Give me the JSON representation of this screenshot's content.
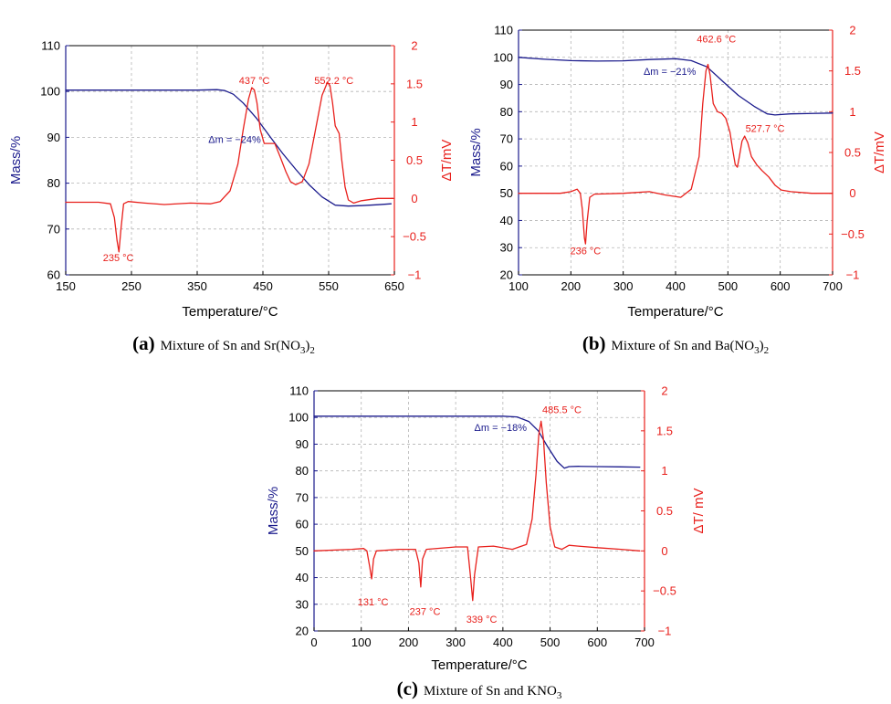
{
  "colors": {
    "mass": "#1a1a8c",
    "dta": "#e8201c",
    "grid": "#b4b4b4",
    "text": "#000000"
  },
  "chart_data": [
    {
      "type": "line",
      "panel_letter": "(a)",
      "caption_parts": [
        "Mixture of Sn and Sr(NO",
        "3",
        ")",
        "2"
      ],
      "xlabel": "Temperature/°C",
      "ylabel_left": "Mass/%",
      "ylabel_right": "ΔT/mV",
      "xlim": [
        150,
        650
      ],
      "ylim_left": [
        60,
        110
      ],
      "ylim_right": [
        -1,
        2
      ],
      "xticks": [
        150,
        250,
        350,
        450,
        550,
        650
      ],
      "xtick_labels": [
        "150",
        "250",
        "350",
        "450",
        "550",
        "650"
      ],
      "yticks_left": [
        60,
        70,
        80,
        90,
        100,
        110
      ],
      "ytick_labels_left": [
        "60",
        "70",
        "80",
        "90",
        "100",
        "110"
      ],
      "yticks_right": [
        -1,
        -0.5,
        0,
        0.5,
        1,
        1.5,
        2
      ],
      "ytick_labels_right": [
        "−1",
        "−0.5",
        "0",
        "0.5",
        "1",
        "1.5",
        "2"
      ],
      "grid": true,
      "series": [
        {
          "axis": "left",
          "points": [
            [
              150,
              100.3
            ],
            [
              200,
              100.3
            ],
            [
              250,
              100.3
            ],
            [
              300,
              100.3
            ],
            [
              350,
              100.3
            ],
            [
              380,
              100.4
            ],
            [
              392,
              100.2
            ],
            [
              405,
              99.4
            ],
            [
              420,
              97.5
            ],
            [
              440,
              94.2
            ],
            [
              460,
              90.3
            ],
            [
              480,
              86.5
            ],
            [
              500,
              83.0
            ],
            [
              520,
              79.7
            ],
            [
              540,
              77.0
            ],
            [
              560,
              75.2
            ],
            [
              580,
              75.0
            ],
            [
              600,
              75.1
            ],
            [
              625,
              75.3
            ],
            [
              645,
              75.5
            ]
          ]
        },
        {
          "axis": "right",
          "points": [
            [
              150,
              -0.05
            ],
            [
              200,
              -0.05
            ],
            [
              218,
              -0.07
            ],
            [
              224,
              -0.25
            ],
            [
              228,
              -0.55
            ],
            [
              231,
              -0.7
            ],
            [
              234,
              -0.4
            ],
            [
              238,
              -0.07
            ],
            [
              245,
              -0.04
            ],
            [
              270,
              -0.06
            ],
            [
              300,
              -0.08
            ],
            [
              340,
              -0.06
            ],
            [
              370,
              -0.07
            ],
            [
              385,
              -0.04
            ],
            [
              400,
              0.1
            ],
            [
              412,
              0.45
            ],
            [
              420,
              0.9
            ],
            [
              428,
              1.3
            ],
            [
              433,
              1.45
            ],
            [
              437,
              1.42
            ],
            [
              441,
              1.25
            ],
            [
              446,
              0.9
            ],
            [
              452,
              0.72
            ],
            [
              460,
              0.72
            ],
            [
              468,
              0.72
            ],
            [
              476,
              0.55
            ],
            [
              485,
              0.35
            ],
            [
              492,
              0.22
            ],
            [
              500,
              0.18
            ],
            [
              510,
              0.22
            ],
            [
              520,
              0.45
            ],
            [
              530,
              0.9
            ],
            [
              540,
              1.35
            ],
            [
              548,
              1.52
            ],
            [
              552,
              1.48
            ],
            [
              556,
              1.25
            ],
            [
              560,
              0.95
            ],
            [
              566,
              0.85
            ],
            [
              570,
              0.5
            ],
            [
              575,
              0.15
            ],
            [
              580,
              -0.02
            ],
            [
              588,
              -0.06
            ],
            [
              600,
              -0.03
            ],
            [
              625,
              0.0
            ],
            [
              648,
              0.0
            ]
          ]
        }
      ],
      "annotations": [
        {
          "text": "437 °C",
          "x": 437,
          "y": 1.5,
          "axis": "right"
        },
        {
          "text": "552.2 °C",
          "x": 558,
          "y": 1.5,
          "axis": "right"
        },
        {
          "text": "235 °C",
          "x": 230,
          "y": -0.82,
          "axis": "right"
        },
        {
          "text": "Δm = −24%",
          "x": 407,
          "y": 88.8,
          "axis": "left",
          "color": "mass"
        }
      ]
    },
    {
      "type": "line",
      "panel_letter": "(b)",
      "caption_parts": [
        "Mixture of Sn and Ba(NO",
        "3",
        ")",
        "2"
      ],
      "xlabel": "Temperature/°C",
      "ylabel_left": "Mass/%",
      "ylabel_right": "ΔT/mV",
      "xlim": [
        100,
        700
      ],
      "ylim_left": [
        20,
        110
      ],
      "ylim_right": [
        -1,
        2
      ],
      "xticks": [
        100,
        200,
        300,
        400,
        500,
        600,
        700
      ],
      "xtick_labels": [
        "100",
        "200",
        "300",
        "400",
        "500",
        "600",
        "700"
      ],
      "yticks_left": [
        20,
        30,
        40,
        50,
        60,
        70,
        80,
        90,
        100,
        110
      ],
      "ytick_labels_left": [
        "20",
        "30",
        "40",
        "50",
        "60",
        "70",
        "80",
        "90",
        "100",
        "110"
      ],
      "yticks_right": [
        -1,
        -0.5,
        0,
        0.5,
        1,
        1.5,
        2
      ],
      "ytick_labels_right": [
        "−1",
        "−0.5",
        "0",
        "0.5",
        "1",
        "1.5",
        "2"
      ],
      "grid": true,
      "series": [
        {
          "axis": "left",
          "points": [
            [
              100,
              100.0
            ],
            [
              150,
              99.3
            ],
            [
              200,
              98.8
            ],
            [
              250,
              98.6
            ],
            [
              300,
              98.7
            ],
            [
              350,
              99.2
            ],
            [
              400,
              99.5
            ],
            [
              430,
              98.8
            ],
            [
              460,
              96.5
            ],
            [
              490,
              91.2
            ],
            [
              520,
              86.0
            ],
            [
              550,
              82.0
            ],
            [
              575,
              79.2
            ],
            [
              590,
              78.8
            ],
            [
              620,
              79.2
            ],
            [
              700,
              79.5
            ]
          ]
        },
        {
          "axis": "right",
          "points": [
            [
              100,
              0.0
            ],
            [
              180,
              0.0
            ],
            [
              200,
              0.02
            ],
            [
              212,
              0.05
            ],
            [
              218,
              0.0
            ],
            [
              222,
              -0.2
            ],
            [
              226,
              -0.55
            ],
            [
              228,
              -0.62
            ],
            [
              231,
              -0.35
            ],
            [
              236,
              -0.05
            ],
            [
              245,
              -0.01
            ],
            [
              300,
              0.0
            ],
            [
              350,
              0.02
            ],
            [
              380,
              -0.02
            ],
            [
              410,
              -0.05
            ],
            [
              430,
              0.05
            ],
            [
              445,
              0.45
            ],
            [
              452,
              1.1
            ],
            [
              458,
              1.5
            ],
            [
              462,
              1.58
            ],
            [
              466,
              1.45
            ],
            [
              472,
              1.1
            ],
            [
              480,
              1.0
            ],
            [
              488,
              0.98
            ],
            [
              496,
              0.92
            ],
            [
              504,
              0.75
            ],
            [
              510,
              0.5
            ],
            [
              514,
              0.35
            ],
            [
              518,
              0.32
            ],
            [
              522,
              0.45
            ],
            [
              527,
              0.64
            ],
            [
              532,
              0.7
            ],
            [
              538,
              0.62
            ],
            [
              545,
              0.45
            ],
            [
              555,
              0.35
            ],
            [
              565,
              0.28
            ],
            [
              578,
              0.2
            ],
            [
              590,
              0.1
            ],
            [
              602,
              0.04
            ],
            [
              620,
              0.02
            ],
            [
              660,
              0.0
            ],
            [
              700,
              0.0
            ]
          ]
        }
      ],
      "annotations": [
        {
          "text": "462.6 °C",
          "x": 478,
          "y": 1.85,
          "axis": "right"
        },
        {
          "text": "527.7 °C",
          "x": 571,
          "y": 0.75,
          "axis": "right"
        },
        {
          "text": "236 °C",
          "x": 228,
          "y": -0.75,
          "axis": "right"
        },
        {
          "text": "Δm = −21%",
          "x": 389,
          "y": 93.5,
          "axis": "left",
          "color": "mass"
        }
      ]
    },
    {
      "type": "line",
      "panel_letter": "(c)",
      "caption_parts": [
        "Mixture of Sn and KNO",
        "3"
      ],
      "xlabel": "Temperature/°C",
      "ylabel_left": "Mass/%",
      "ylabel_right": "ΔT/ mV",
      "xlim": [
        0,
        700
      ],
      "ylim_left": [
        20,
        110
      ],
      "ylim_right": [
        -1,
        2
      ],
      "xticks": [
        0,
        100,
        200,
        300,
        400,
        500,
        600,
        700
      ],
      "xtick_labels": [
        "0",
        "100",
        "200",
        "300",
        "400",
        "500",
        "600",
        "700"
      ],
      "yticks_left": [
        20,
        30,
        40,
        50,
        60,
        70,
        80,
        90,
        100,
        110
      ],
      "ytick_labels_left": [
        "20",
        "30",
        "40",
        "50",
        "60",
        "70",
        "80",
        "90",
        "100",
        "110"
      ],
      "yticks_right": [
        -1,
        -0.5,
        0,
        0.5,
        1,
        1.5,
        2
      ],
      "ytick_labels_right": [
        "−1",
        "−0.5",
        "0",
        "0.5",
        "1",
        "1.5",
        "2"
      ],
      "grid": true,
      "series": [
        {
          "axis": "left",
          "points": [
            [
              0,
              100.5
            ],
            [
              100,
              100.5
            ],
            [
              200,
              100.5
            ],
            [
              300,
              100.5
            ],
            [
              400,
              100.5
            ],
            [
              430,
              100.2
            ],
            [
              455,
              98.5
            ],
            [
              475,
              95.0
            ],
            [
              495,
              89.0
            ],
            [
              515,
              83.5
            ],
            [
              530,
              81.0
            ],
            [
              540,
              81.6
            ],
            [
              560,
              81.7
            ],
            [
              600,
              81.6
            ],
            [
              650,
              81.5
            ],
            [
              690,
              81.4
            ]
          ]
        },
        {
          "axis": "right",
          "points": [
            [
              0,
              0.0
            ],
            [
              80,
              0.02
            ],
            [
              105,
              0.03
            ],
            [
              112,
              0.0
            ],
            [
              118,
              -0.2
            ],
            [
              122,
              -0.35
            ],
            [
              126,
              -0.1
            ],
            [
              132,
              0.0
            ],
            [
              180,
              0.02
            ],
            [
              215,
              0.02
            ],
            [
              222,
              -0.15
            ],
            [
              226,
              -0.45
            ],
            [
              230,
              -0.1
            ],
            [
              238,
              0.02
            ],
            [
              300,
              0.05
            ],
            [
              325,
              0.05
            ],
            [
              331,
              -0.3
            ],
            [
              336,
              -0.62
            ],
            [
              340,
              -0.3
            ],
            [
              348,
              0.05
            ],
            [
              380,
              0.06
            ],
            [
              420,
              0.02
            ],
            [
              450,
              0.08
            ],
            [
              462,
              0.4
            ],
            [
              470,
              0.95
            ],
            [
              476,
              1.45
            ],
            [
              481,
              1.62
            ],
            [
              486,
              1.4
            ],
            [
              492,
              0.85
            ],
            [
              500,
              0.3
            ],
            [
              510,
              0.05
            ],
            [
              525,
              0.02
            ],
            [
              540,
              0.07
            ],
            [
              560,
              0.06
            ],
            [
              600,
              0.04
            ],
            [
              650,
              0.02
            ],
            [
              690,
              0.0
            ]
          ]
        }
      ],
      "annotations": [
        {
          "text": "485.5 °C",
          "x": 525,
          "y": 1.72,
          "axis": "right"
        },
        {
          "text": "131 °C",
          "x": 125,
          "y": -0.68,
          "axis": "right"
        },
        {
          "text": "237 °C",
          "x": 235,
          "y": -0.8,
          "axis": "right"
        },
        {
          "text": "339 °C",
          "x": 355,
          "y": -0.9,
          "axis": "right"
        },
        {
          "text": "Δm = −18%",
          "x": 395,
          "y": 95.0,
          "axis": "left",
          "color": "mass"
        }
      ]
    }
  ]
}
